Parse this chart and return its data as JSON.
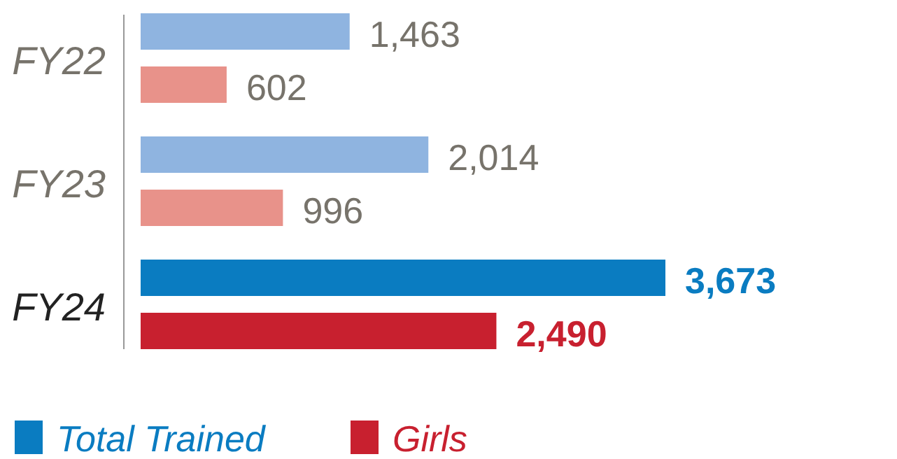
{
  "chart_data": {
    "type": "bar",
    "orientation": "horizontal",
    "categories": [
      "FY22",
      "FY23",
      "FY24"
    ],
    "series": [
      {
        "name": "Total Trained",
        "color": "#0a7cc1",
        "colors": [
          "#8fb4e0",
          "#8fb4e0",
          "#0a7cc1"
        ],
        "values": [
          1463,
          2014,
          3673
        ],
        "value_labels": [
          "1,463",
          "2,014",
          "3,673"
        ]
      },
      {
        "name": "Girls",
        "color": "#c8202f",
        "colors": [
          "#e8928a",
          "#e8928a",
          "#c8202f"
        ],
        "values": [
          602,
          996,
          2490
        ],
        "value_labels": [
          "602",
          "996",
          "2,490"
        ]
      }
    ],
    "legend": "bottom left",
    "grid": false
  }
}
